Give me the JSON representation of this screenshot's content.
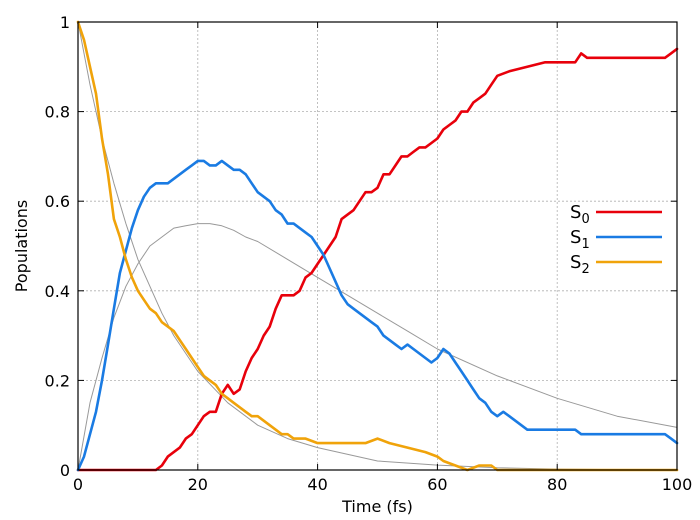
{
  "chart_data": {
    "type": "line",
    "xlabel": "Time (fs)",
    "ylabel": "Populations",
    "xlim": [
      0,
      100
    ],
    "ylim": [
      0,
      1
    ],
    "xticks": [
      0,
      20,
      40,
      60,
      80,
      100
    ],
    "yticks": [
      0,
      0.2,
      0.4,
      0.6,
      0.8,
      1
    ],
    "ytick_labels": [
      "0",
      "0.2",
      "0.4",
      "0.6",
      "0.8",
      "1"
    ],
    "grid": true,
    "legend": "right",
    "series": [
      {
        "name": "S0",
        "color": "#e8000b",
        "x": [
          0,
          5,
          10,
          13,
          14,
          15,
          16,
          17,
          18,
          19,
          20,
          21,
          22,
          23,
          24,
          25,
          26,
          27,
          28,
          29,
          30,
          31,
          32,
          33,
          34,
          35,
          36,
          37,
          38,
          39,
          40,
          41,
          42,
          43,
          44,
          45,
          46,
          47,
          48,
          49,
          50,
          51,
          52,
          53,
          54,
          55,
          56,
          57,
          58,
          59,
          60,
          61,
          62,
          63,
          64,
          65,
          66,
          67,
          68,
          69,
          70,
          72,
          75,
          78,
          80,
          83,
          84,
          85,
          90,
          95,
          98,
          99,
          100
        ],
        "y": [
          0,
          0,
          0,
          0,
          0.01,
          0.03,
          0.04,
          0.05,
          0.07,
          0.08,
          0.1,
          0.12,
          0.13,
          0.13,
          0.17,
          0.19,
          0.17,
          0.18,
          0.22,
          0.25,
          0.27,
          0.3,
          0.32,
          0.36,
          0.39,
          0.39,
          0.39,
          0.4,
          0.43,
          0.44,
          0.46,
          0.48,
          0.5,
          0.52,
          0.56,
          0.57,
          0.58,
          0.6,
          0.62,
          0.62,
          0.63,
          0.66,
          0.66,
          0.68,
          0.7,
          0.7,
          0.71,
          0.72,
          0.72,
          0.73,
          0.74,
          0.76,
          0.77,
          0.78,
          0.8,
          0.8,
          0.82,
          0.83,
          0.84,
          0.86,
          0.88,
          0.89,
          0.9,
          0.91,
          0.91,
          0.91,
          0.93,
          0.92,
          0.92,
          0.92,
          0.92,
          0.93,
          0.94
        ]
      },
      {
        "name": "S1",
        "color": "#1a7be3",
        "x": [
          0,
          1,
          2,
          3,
          4,
          5,
          6,
          7,
          8,
          9,
          10,
          11,
          12,
          13,
          14,
          15,
          16,
          17,
          18,
          19,
          20,
          21,
          22,
          23,
          24,
          25,
          26,
          27,
          28,
          29,
          30,
          31,
          32,
          33,
          34,
          35,
          36,
          37,
          38,
          39,
          40,
          41,
          42,
          43,
          44,
          45,
          46,
          47,
          48,
          49,
          50,
          51,
          52,
          53,
          54,
          55,
          56,
          57,
          58,
          59,
          60,
          61,
          62,
          63,
          64,
          65,
          66,
          67,
          68,
          69,
          70,
          71,
          72,
          73,
          75,
          80,
          83,
          84,
          85,
          90,
          95,
          98,
          99,
          100
        ],
        "y": [
          0,
          0.03,
          0.08,
          0.13,
          0.2,
          0.28,
          0.36,
          0.44,
          0.49,
          0.54,
          0.58,
          0.61,
          0.63,
          0.64,
          0.64,
          0.64,
          0.65,
          0.66,
          0.67,
          0.68,
          0.69,
          0.69,
          0.68,
          0.68,
          0.69,
          0.68,
          0.67,
          0.67,
          0.66,
          0.64,
          0.62,
          0.61,
          0.6,
          0.58,
          0.57,
          0.55,
          0.55,
          0.54,
          0.53,
          0.52,
          0.5,
          0.48,
          0.45,
          0.42,
          0.39,
          0.37,
          0.36,
          0.35,
          0.34,
          0.33,
          0.32,
          0.3,
          0.29,
          0.28,
          0.27,
          0.28,
          0.27,
          0.26,
          0.25,
          0.24,
          0.25,
          0.27,
          0.26,
          0.24,
          0.22,
          0.2,
          0.18,
          0.16,
          0.15,
          0.13,
          0.12,
          0.13,
          0.12,
          0.11,
          0.09,
          0.09,
          0.09,
          0.08,
          0.08,
          0.08,
          0.08,
          0.08,
          0.07,
          0.06
        ]
      },
      {
        "name": "S2",
        "color": "#f0a30a",
        "x": [
          0,
          1,
          2,
          3,
          4,
          5,
          6,
          7,
          8,
          9,
          10,
          11,
          12,
          13,
          14,
          15,
          16,
          17,
          18,
          19,
          20,
          21,
          22,
          23,
          24,
          25,
          26,
          27,
          28,
          29,
          30,
          31,
          32,
          33,
          34,
          35,
          36,
          38,
          40,
          42,
          44,
          46,
          48,
          50,
          52,
          55,
          58,
          60,
          61,
          63,
          65,
          67,
          69,
          70,
          75,
          80,
          90,
          100
        ],
        "y": [
          1,
          0.96,
          0.9,
          0.84,
          0.74,
          0.66,
          0.56,
          0.52,
          0.47,
          0.43,
          0.4,
          0.38,
          0.36,
          0.35,
          0.33,
          0.32,
          0.31,
          0.29,
          0.27,
          0.25,
          0.23,
          0.21,
          0.2,
          0.19,
          0.17,
          0.16,
          0.15,
          0.14,
          0.13,
          0.12,
          0.12,
          0.11,
          0.1,
          0.09,
          0.08,
          0.08,
          0.07,
          0.07,
          0.06,
          0.06,
          0.06,
          0.06,
          0.06,
          0.07,
          0.06,
          0.05,
          0.04,
          0.03,
          0.02,
          0.01,
          0,
          0.01,
          0.01,
          0,
          0,
          0,
          0,
          0
        ]
      },
      {
        "color": "#999999",
        "x": [
          0,
          2,
          4,
          6,
          8,
          10,
          12,
          14,
          16,
          18,
          20,
          25,
          30,
          35,
          40,
          50,
          60,
          70,
          80,
          90,
          100
        ],
        "y": [
          1,
          0.86,
          0.74,
          0.64,
          0.55,
          0.47,
          0.41,
          0.35,
          0.3,
          0.26,
          0.22,
          0.15,
          0.1,
          0.07,
          0.05,
          0.02,
          0.011,
          0.005,
          0.002,
          0.001,
          0.0005
        ]
      },
      {
        "color": "#999999",
        "x": [
          0,
          2,
          4,
          6,
          8,
          10,
          12,
          14,
          16,
          18,
          20,
          22,
          24,
          26,
          28,
          30,
          35,
          40,
          45,
          50,
          55,
          60,
          70,
          80,
          90,
          100
        ],
        "y": [
          0,
          0.15,
          0.25,
          0.34,
          0.41,
          0.46,
          0.5,
          0.52,
          0.54,
          0.545,
          0.55,
          0.55,
          0.545,
          0.535,
          0.52,
          0.51,
          0.47,
          0.43,
          0.39,
          0.35,
          0.31,
          0.27,
          0.21,
          0.16,
          0.12,
          0.095
        ]
      }
    ],
    "legend_entries": [
      {
        "base": "S",
        "sub": "0",
        "color": "#e8000b"
      },
      {
        "base": "S",
        "sub": "1",
        "color": "#1a7be3"
      },
      {
        "base": "S",
        "sub": "2",
        "color": "#f0a30a"
      }
    ]
  }
}
